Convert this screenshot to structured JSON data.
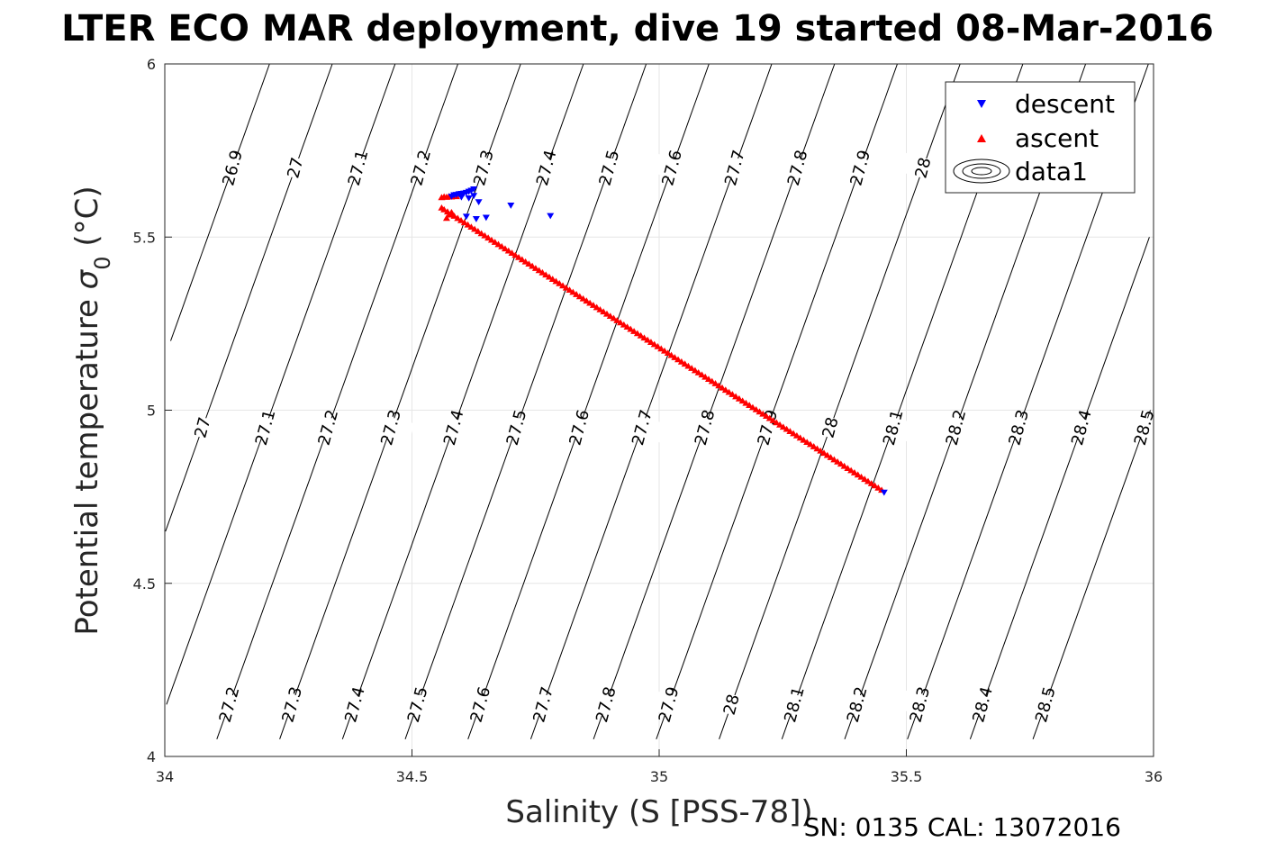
{
  "chart_data": {
    "type": "scatter",
    "title": "LTER ECO MAR deployment, dive 19 started 08-Mar-2016",
    "xlabel": "Salinity (S [PSS-78])",
    "ylabel_main": "Potential temperature ",
    "ylabel_symbol": "σ",
    "ylabel_subscript": "0",
    "ylabel_unit": " (°C)",
    "xlim": [
      34,
      36
    ],
    "ylim": [
      4,
      6
    ],
    "xticks": [
      34,
      34.5,
      35,
      35.5,
      36
    ],
    "yticks": [
      4,
      4.5,
      5,
      5.5,
      6
    ],
    "grid": true,
    "legend_position": "top-right",
    "footer": "SN: 0135  CAL: 13072016",
    "series": [
      {
        "name": "descent",
        "marker": "triangle-down",
        "color": "#0000ff",
        "x": [
          34.58,
          34.585,
          34.59,
          34.595,
          34.6,
          34.605,
          34.61,
          34.615,
          34.62,
          34.625,
          34.6,
          34.615,
          34.625,
          34.635,
          34.61,
          34.63,
          34.65,
          34.7,
          34.78,
          35.455
        ],
        "y": [
          5.617,
          5.621,
          5.622,
          5.624,
          5.625,
          5.626,
          5.628,
          5.631,
          5.634,
          5.638,
          5.615,
          5.612,
          5.619,
          5.601,
          5.559,
          5.552,
          5.556,
          5.591,
          5.561,
          4.762
        ]
      },
      {
        "name": "ascent",
        "marker": "triangle-up",
        "color": "#ff0000",
        "x_start": 34.565,
        "y_start": 5.58,
        "x_end": 35.45,
        "y_end": 4.77,
        "n_points": 130,
        "x_extra": [
          34.56,
          34.565,
          34.57,
          34.575,
          34.58,
          34.585,
          34.59,
          34.57,
          34.575,
          34.58,
          34.56
        ],
        "y_extra": [
          5.615,
          5.617,
          5.616,
          5.618,
          5.617,
          5.619,
          5.618,
          5.555,
          5.565,
          5.572,
          5.585
        ]
      },
      {
        "name": "data1",
        "marker": "contour",
        "color": "#000000",
        "isopycnals": [
          {
            "value": 26.9,
            "label": "26.9"
          },
          {
            "value": 27.0,
            "label": "27"
          },
          {
            "value": 27.1,
            "label": "27.1"
          },
          {
            "value": 27.2,
            "label": "27.2"
          },
          {
            "value": 27.3,
            "label": "27.3"
          },
          {
            "value": 27.4,
            "label": "27.4"
          },
          {
            "value": 27.5,
            "label": "27.5"
          },
          {
            "value": 27.6,
            "label": "27.6"
          },
          {
            "value": 27.7,
            "label": "27.7"
          },
          {
            "value": 27.8,
            "label": "27.8"
          },
          {
            "value": 27.9,
            "label": "27.9"
          },
          {
            "value": 28.0,
            "label": "28"
          },
          {
            "value": 28.1,
            "label": "28.1"
          },
          {
            "value": 28.2,
            "label": "28.2"
          },
          {
            "value": 28.3,
            "label": "28.3"
          },
          {
            "value": 28.4,
            "label": "28.4"
          },
          {
            "value": 28.5,
            "label": "28.5"
          }
        ]
      }
    ]
  }
}
